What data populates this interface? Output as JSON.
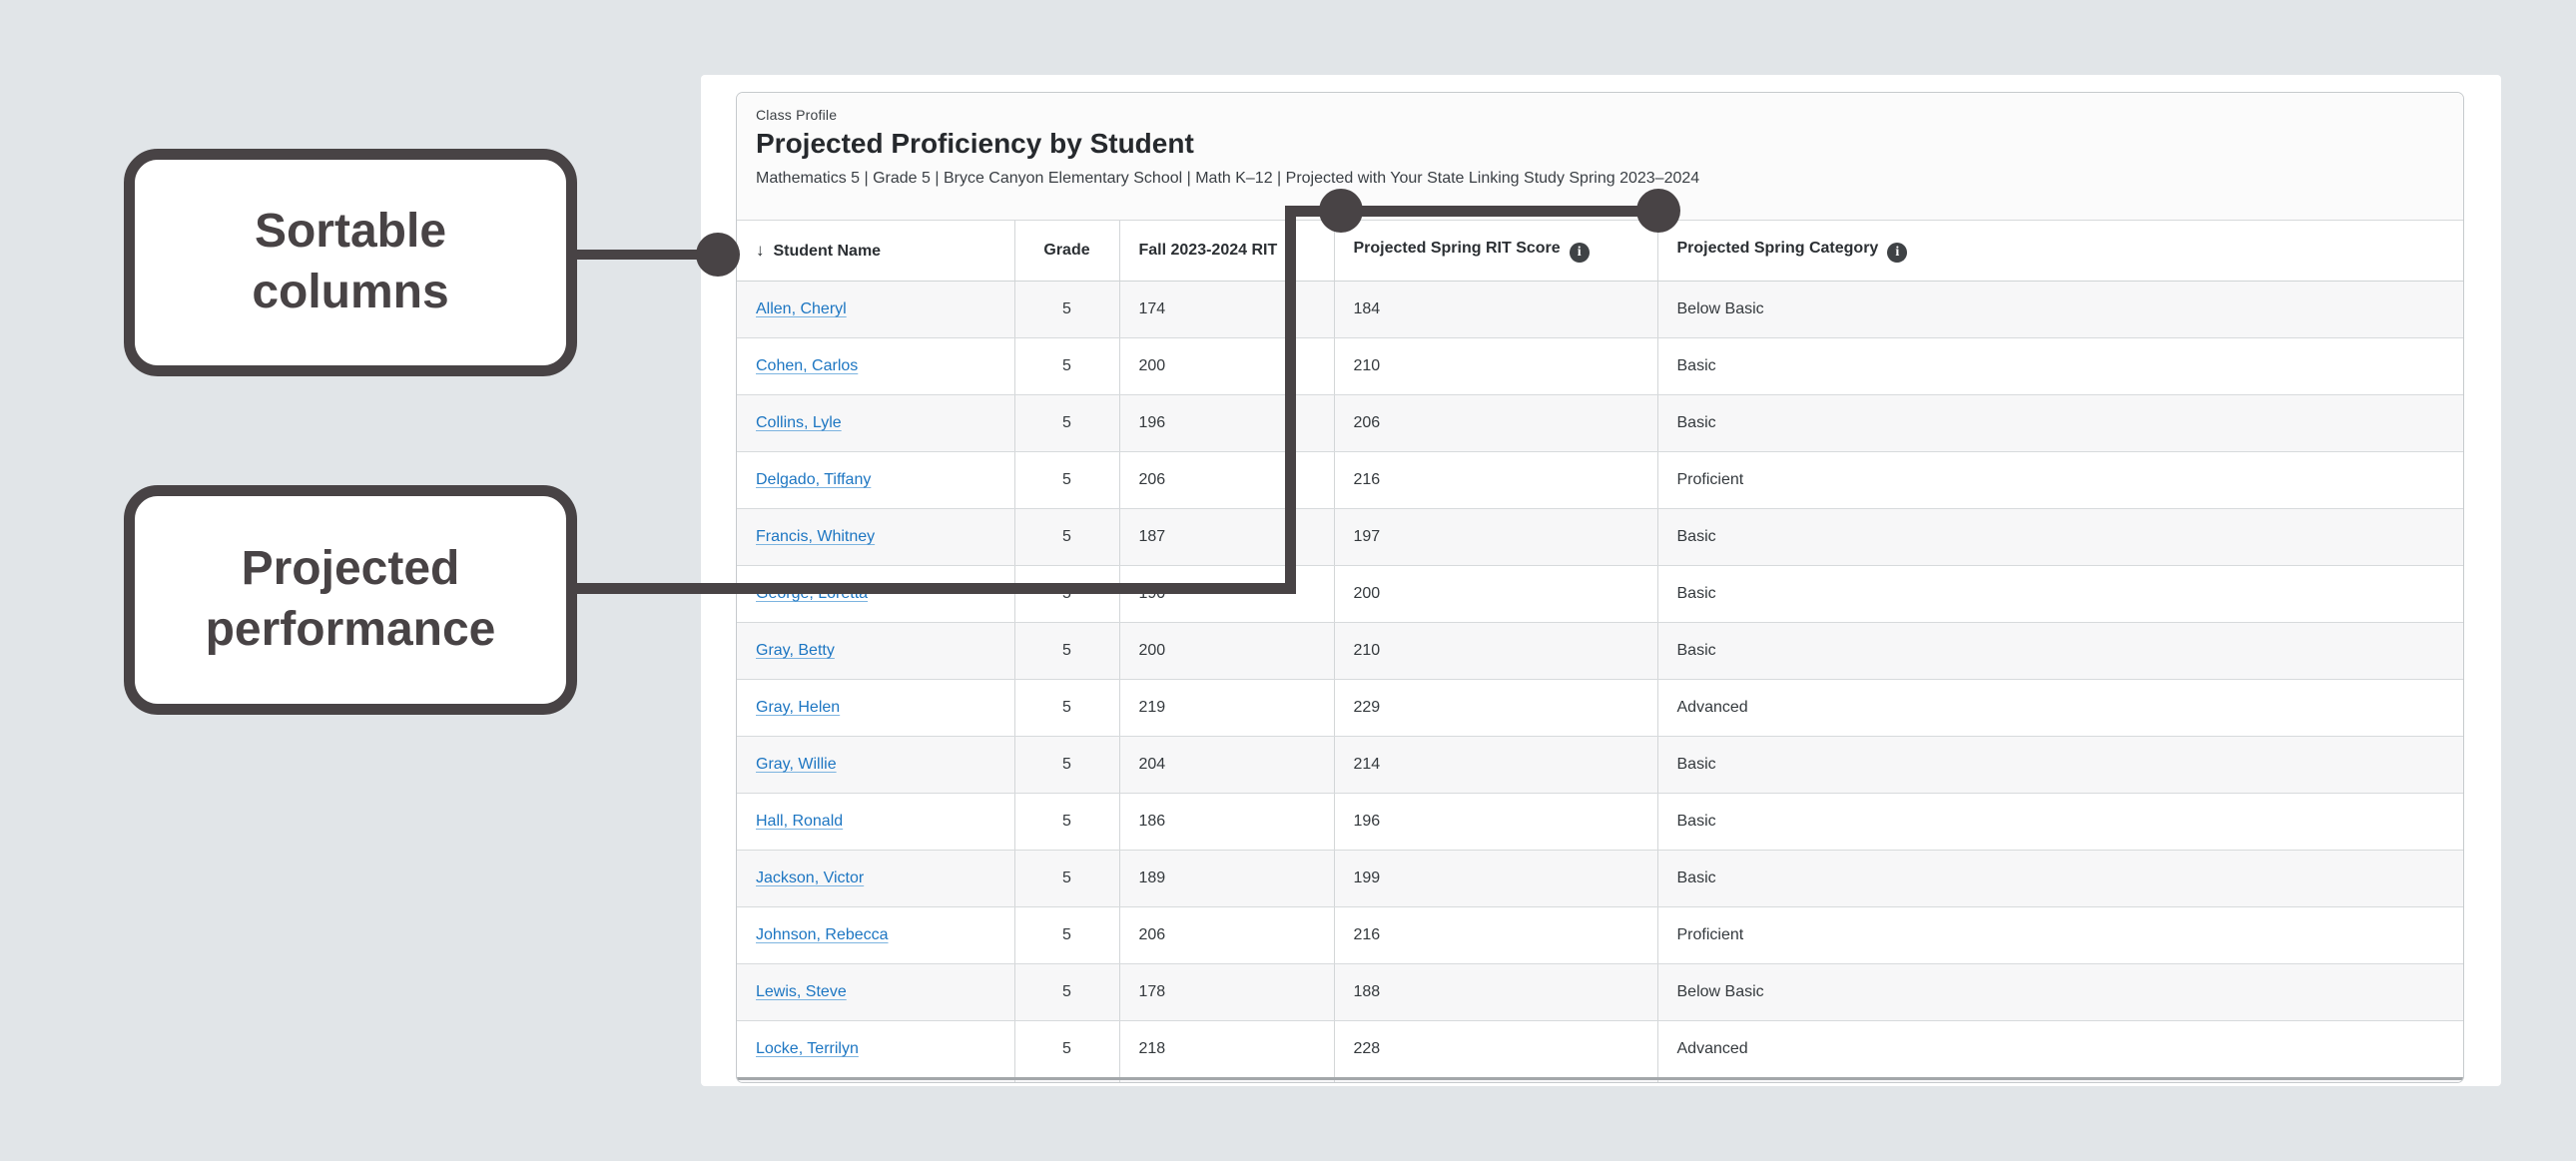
{
  "theme": {
    "background": "#e1e5e8",
    "stroke": "#484345",
    "link_color": "#1d76c2",
    "info_icon_color": "#3f4245",
    "zebra_row_color": "#f7f7f8"
  },
  "callouts": {
    "sortable": {
      "label": "Sortable\ncolumns"
    },
    "projected": {
      "label": "Projected\nperformance"
    }
  },
  "report": {
    "eyebrow": "Class Profile",
    "title": "Projected Proficiency by Student",
    "subtitle": "Mathematics 5 | Grade 5 | Bryce Canyon Elementary School | Math K–12 | Projected with Your State Linking Study Spring 2023–2024"
  },
  "table": {
    "sort_icon": "↓",
    "info_icon_glyph": "i",
    "columns": [
      {
        "label": "Student Name",
        "sorted": true,
        "info": false,
        "align": "left"
      },
      {
        "label": "Grade",
        "sorted": false,
        "info": false,
        "align": "center"
      },
      {
        "label": "Fall 2023-2024 RIT",
        "sorted": false,
        "info": false,
        "align": "left"
      },
      {
        "label": "Projected Spring RIT Score",
        "sorted": false,
        "info": true,
        "align": "left"
      },
      {
        "label": "Projected Spring Category",
        "sorted": false,
        "info": true,
        "align": "left"
      }
    ],
    "rows": [
      {
        "name": "Allen, Cheryl",
        "grade": "5",
        "fall_rit": "174",
        "projected_rit": "184",
        "category": "Below Basic"
      },
      {
        "name": "Cohen, Carlos",
        "grade": "5",
        "fall_rit": "200",
        "projected_rit": "210",
        "category": "Basic"
      },
      {
        "name": "Collins, Lyle",
        "grade": "5",
        "fall_rit": "196",
        "projected_rit": "206",
        "category": "Basic"
      },
      {
        "name": "Delgado, Tiffany",
        "grade": "5",
        "fall_rit": "206",
        "projected_rit": "216",
        "category": "Proficient"
      },
      {
        "name": "Francis, Whitney",
        "grade": "5",
        "fall_rit": "187",
        "projected_rit": "197",
        "category": "Basic"
      },
      {
        "name": "George, Loretta",
        "grade": "5",
        "fall_rit": "190",
        "projected_rit": "200",
        "category": "Basic"
      },
      {
        "name": "Gray, Betty",
        "grade": "5",
        "fall_rit": "200",
        "projected_rit": "210",
        "category": "Basic"
      },
      {
        "name": "Gray, Helen",
        "grade": "5",
        "fall_rit": "219",
        "projected_rit": "229",
        "category": "Advanced"
      },
      {
        "name": "Gray, Willie",
        "grade": "5",
        "fall_rit": "204",
        "projected_rit": "214",
        "category": "Basic"
      },
      {
        "name": "Hall, Ronald",
        "grade": "5",
        "fall_rit": "186",
        "projected_rit": "196",
        "category": "Basic"
      },
      {
        "name": "Jackson, Victor",
        "grade": "5",
        "fall_rit": "189",
        "projected_rit": "199",
        "category": "Basic"
      },
      {
        "name": "Johnson, Rebecca",
        "grade": "5",
        "fall_rit": "206",
        "projected_rit": "216",
        "category": "Proficient"
      },
      {
        "name": "Lewis, Steve",
        "grade": "5",
        "fall_rit": "178",
        "projected_rit": "188",
        "category": "Below Basic"
      },
      {
        "name": "Locke, Terrilyn",
        "grade": "5",
        "fall_rit": "218",
        "projected_rit": "228",
        "category": "Advanced"
      }
    ]
  }
}
